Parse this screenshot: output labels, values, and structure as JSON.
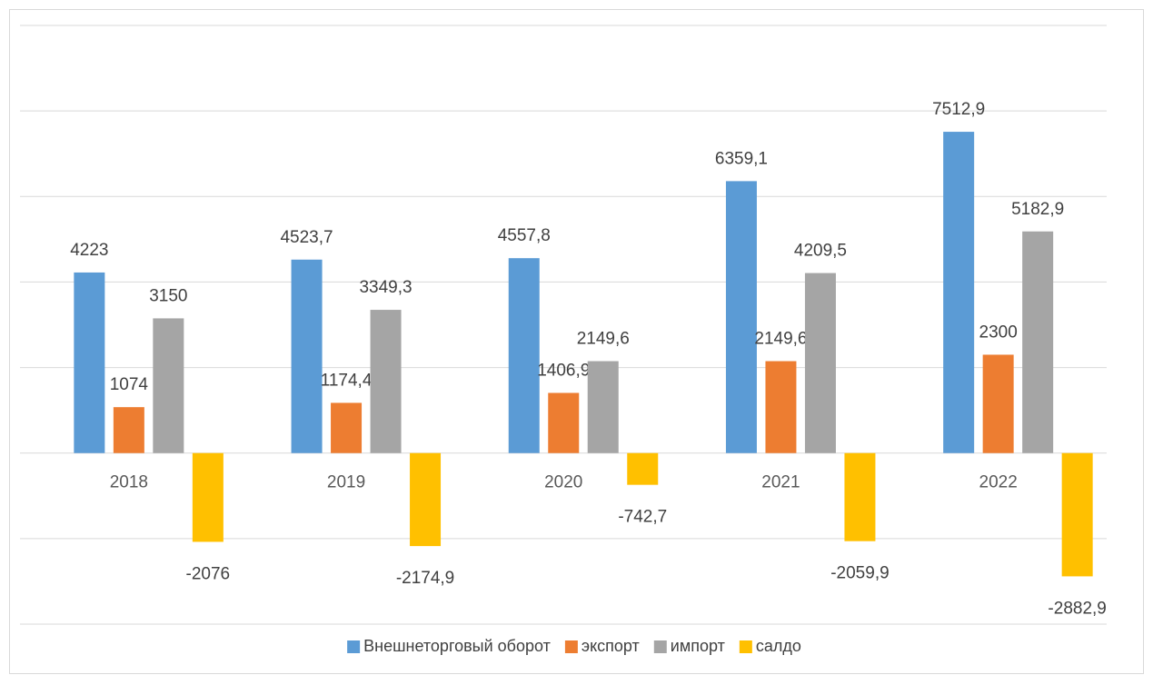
{
  "chart_data": {
    "type": "bar",
    "categories": [
      "2018",
      "2019",
      "2020",
      "2021",
      "2022"
    ],
    "series": [
      {
        "name": "Внешнеторговый оборот",
        "color": "#5b9bd5",
        "values": [
          4223,
          4523.7,
          4557.8,
          6359.1,
          7512.9
        ],
        "value_labels": [
          "4223",
          "4523,7",
          "4557,8",
          "6359,1",
          "7512,9"
        ]
      },
      {
        "name": "экспорт",
        "color": "#ed7d31",
        "values": [
          1074,
          1174.4,
          1406.9,
          2149.6,
          2300
        ],
        "value_labels": [
          "1074",
          "1174,4",
          "1406,9",
          "2149,6",
          "2300"
        ]
      },
      {
        "name": "импорт",
        "color": "#a5a5a5",
        "values": [
          3150,
          3349.3,
          2149.6,
          4209.5,
          5182.9
        ],
        "value_labels": [
          "3150",
          "3349,3",
          "2149,6",
          "4209,5",
          "5182,9"
        ]
      },
      {
        "name": "салдо",
        "color": "#ffc000",
        "values": [
          -2076,
          -2174.9,
          -742.7,
          -2059.9,
          -2882.9
        ],
        "value_labels": [
          "-2076",
          "-2174,9",
          "-742,7",
          "-2059,9",
          "-2882,9"
        ]
      }
    ],
    "ylim": [
      -4000,
      10000
    ],
    "yticks": [
      -4000,
      -2000,
      0,
      2000,
      4000,
      6000,
      8000,
      10000
    ],
    "grid": true,
    "legend": "bottom"
  }
}
